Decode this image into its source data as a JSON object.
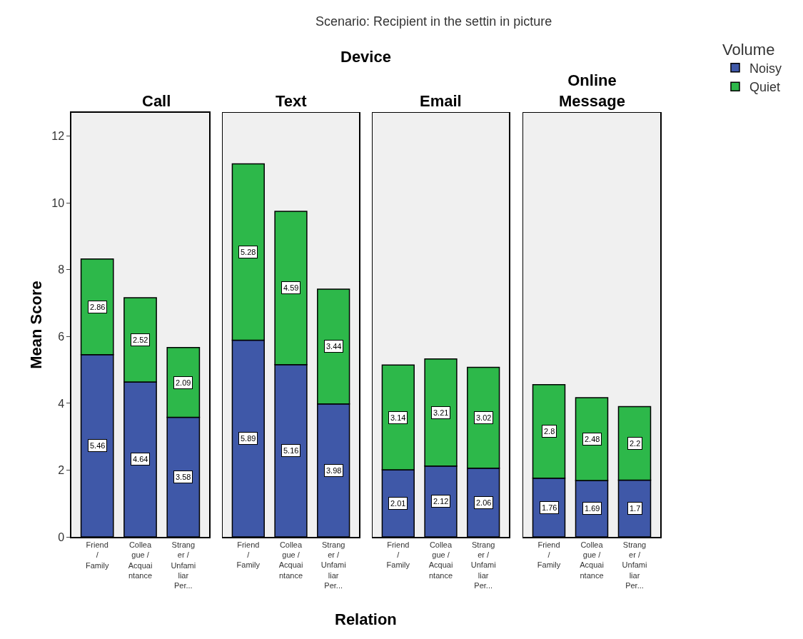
{
  "chart_data": [
    {
      "type": "bar",
      "title": "Call",
      "stacked": true,
      "data_labels": true,
      "legend": "top right",
      "legend_title": "Volume",
      "ylabel": "Mean Score",
      "annotations": [
        "Scenario: Recipient in the settin in picture",
        "Device",
        "Relation"
      ],
      "ylim": [
        0,
        12.7
      ],
      "yticks": [
        0,
        2,
        4,
        6,
        8,
        10,
        12
      ],
      "categories": [
        "Friend / Family",
        "Colleague / Acquaintance",
        "Stranger / Unfamiliar Per..."
      ],
      "series": [
        {
          "name": "Noisy",
          "color": "#3f58a8",
          "values": [
            5.46,
            4.64,
            3.58
          ]
        },
        {
          "name": "Quiet",
          "color": "#2db84a",
          "values": [
            2.86,
            2.52,
            2.09
          ]
        }
      ]
    },
    {
      "type": "bar",
      "title": "Text",
      "stacked": true,
      "data_labels": true,
      "tick_labels": "x",
      "ylim": [
        0,
        12.7
      ],
      "categories": [
        "Friend / Family",
        "Colleague / Acquaintance",
        "Stranger / Unfamiliar Per..."
      ],
      "series": [
        {
          "color": "#3f58a8",
          "values": [
            5.89,
            5.16,
            3.98
          ]
        },
        {
          "color": "#2db84a",
          "values": [
            5.28,
            4.59,
            3.44
          ]
        }
      ]
    },
    {
      "type": "bar",
      "title": "Email",
      "stacked": true,
      "data_labels": true,
      "tick_labels": "x",
      "ylim": [
        0,
        12.7
      ],
      "categories": [
        "Friend / Family",
        "Colleague / Acquaintance",
        "Stranger / Unfamiliar Per..."
      ],
      "series": [
        {
          "color": "#3f58a8",
          "values": [
            2.01,
            2.12,
            2.06
          ]
        },
        {
          "color": "#2db84a",
          "values": [
            3.14,
            3.21,
            3.02
          ]
        }
      ]
    },
    {
      "type": "bar",
      "title": "Online Message",
      "stacked": true,
      "data_labels": true,
      "tick_labels": "x",
      "ylim": [
        0,
        12.7
      ],
      "categories": [
        "Friend / Family",
        "Colleague / Acquaintance",
        "Stranger / Unfamiliar Per..."
      ],
      "series": [
        {
          "color": "#3f58a8",
          "values": [
            1.76,
            1.69,
            1.7
          ]
        },
        {
          "color": "#2db84a",
          "values": [
            2.8,
            2.48,
            2.2
          ]
        }
      ]
    }
  ]
}
